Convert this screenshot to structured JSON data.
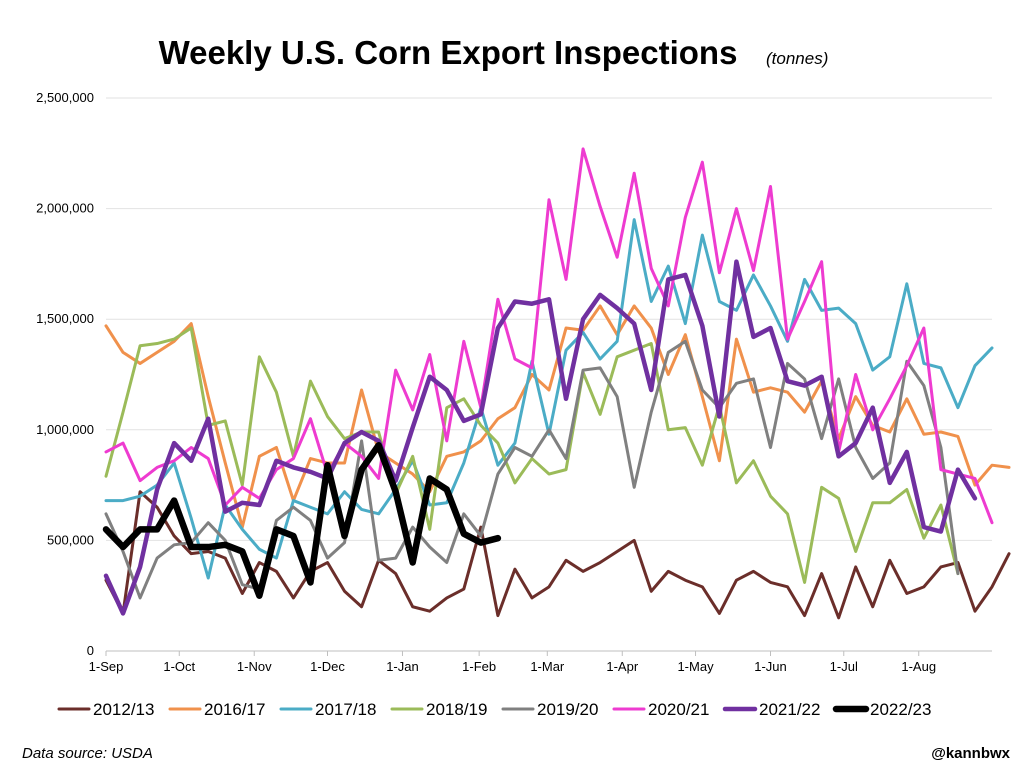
{
  "chart_data": {
    "type": "line",
    "title": "Weekly U.S. Corn Export Inspections",
    "subtitle": "(tonnes)",
    "ylim": [
      0,
      2500000
    ],
    "xlim": [
      0,
      52
    ],
    "y_ticks": [
      {
        "v": 0,
        "label": "0"
      },
      {
        "v": 500000,
        "label": "500,000"
      },
      {
        "v": 1000000,
        "label": "1,000,000"
      },
      {
        "v": 1500000,
        "label": "1,500,000"
      },
      {
        "v": 2000000,
        "label": "2,000,000"
      },
      {
        "v": 2500000,
        "label": "2,500,000"
      }
    ],
    "x_ticks": [
      {
        "v": 0,
        "label": "1-Sep"
      },
      {
        "v": 4.3,
        "label": "1-Oct"
      },
      {
        "v": 8.7,
        "label": "1-Nov"
      },
      {
        "v": 13.0,
        "label": "1-Dec"
      },
      {
        "v": 17.4,
        "label": "1-Jan"
      },
      {
        "v": 21.9,
        "label": "1-Feb"
      },
      {
        "v": 25.9,
        "label": "1-Mar"
      },
      {
        "v": 30.3,
        "label": "1-Apr"
      },
      {
        "v": 34.6,
        "label": "1-May"
      },
      {
        "v": 39.0,
        "label": "1-Jun"
      },
      {
        "v": 43.3,
        "label": "1-Jul"
      },
      {
        "v": 47.7,
        "label": "1-Aug"
      }
    ],
    "grid": true,
    "legend_position": "bottom",
    "series": [
      {
        "name": "2012/13",
        "color": "#6b2e2a",
        "width": 3,
        "values": [
          320000,
          170000,
          720000,
          650000,
          520000,
          440000,
          450000,
          420000,
          260000,
          400000,
          360000,
          240000,
          360000,
          400000,
          270000,
          200000,
          410000,
          350000,
          200000,
          180000,
          240000,
          280000,
          560000,
          160000,
          370000,
          240000,
          290000,
          410000,
          360000,
          400000,
          450000,
          500000,
          270000,
          360000,
          320000,
          290000,
          170000,
          320000,
          360000,
          310000,
          290000,
          160000,
          350000,
          150000,
          380000,
          200000,
          410000,
          260000,
          290000,
          380000,
          400000,
          180000,
          290000,
          440000
        ]
      },
      {
        "name": "2016/17",
        "color": "#f0914c",
        "width": 3,
        "values": [
          1470000,
          1350000,
          1300000,
          1350000,
          1400000,
          1480000,
          1150000,
          850000,
          560000,
          880000,
          920000,
          680000,
          870000,
          850000,
          850000,
          1180000,
          900000,
          850000,
          800000,
          720000,
          880000,
          900000,
          950000,
          1050000,
          1100000,
          1250000,
          1180000,
          1460000,
          1450000,
          1560000,
          1430000,
          1560000,
          1460000,
          1250000,
          1430000,
          1150000,
          860000,
          1410000,
          1170000,
          1190000,
          1170000,
          1080000,
          1220000,
          960000,
          1150000,
          1020000,
          990000,
          1140000,
          980000,
          990000,
          970000,
          750000,
          840000,
          830000
        ]
      },
      {
        "name": "2017/18",
        "color": "#4bacc6",
        "width": 3,
        "values": [
          680000,
          680000,
          700000,
          750000,
          850000,
          600000,
          330000,
          660000,
          550000,
          460000,
          420000,
          680000,
          650000,
          620000,
          720000,
          640000,
          620000,
          730000,
          860000,
          660000,
          670000,
          850000,
          1100000,
          840000,
          940000,
          1310000,
          980000,
          1360000,
          1440000,
          1320000,
          1400000,
          1950000,
          1580000,
          1740000,
          1480000,
          1880000,
          1580000,
          1540000,
          1700000,
          1560000,
          1400000,
          1680000,
          1540000,
          1550000,
          1480000,
          1270000,
          1330000,
          1660000,
          1300000,
          1280000,
          1100000,
          1290000,
          1370000
        ]
      },
      {
        "name": "2018/19",
        "color": "#9bbb59",
        "width": 3,
        "values": [
          790000,
          1080000,
          1380000,
          1390000,
          1410000,
          1460000,
          1020000,
          1040000,
          750000,
          1330000,
          1170000,
          880000,
          1220000,
          1060000,
          960000,
          990000,
          990000,
          710000,
          880000,
          550000,
          1100000,
          1140000,
          1020000,
          940000,
          760000,
          870000,
          800000,
          820000,
          1260000,
          1070000,
          1330000,
          1360000,
          1390000,
          1000000,
          1010000,
          840000,
          1110000,
          760000,
          860000,
          700000,
          620000,
          310000,
          740000,
          690000,
          450000,
          670000,
          670000,
          730000,
          510000,
          660000,
          350000
        ]
      },
      {
        "name": "2019/20",
        "color": "#808080",
        "width": 3,
        "values": [
          620000,
          450000,
          240000,
          420000,
          480000,
          490000,
          580000,
          500000,
          300000,
          280000,
          590000,
          650000,
          590000,
          420000,
          490000,
          950000,
          410000,
          420000,
          560000,
          470000,
          400000,
          620000,
          520000,
          800000,
          920000,
          880000,
          1000000,
          870000,
          1270000,
          1280000,
          1150000,
          740000,
          1080000,
          1350000,
          1400000,
          1180000,
          1100000,
          1210000,
          1230000,
          920000,
          1300000,
          1230000,
          960000,
          1230000,
          920000,
          780000,
          850000,
          1310000,
          1200000,
          920000,
          350000
        ]
      },
      {
        "name": "2020/21",
        "color": "#ee3bd0",
        "width": 3,
        "values": [
          900000,
          940000,
          770000,
          830000,
          860000,
          920000,
          870000,
          660000,
          740000,
          690000,
          820000,
          870000,
          1050000,
          800000,
          940000,
          880000,
          780000,
          1270000,
          1090000,
          1340000,
          950000,
          1400000,
          1100000,
          1590000,
          1320000,
          1280000,
          2040000,
          1680000,
          2270000,
          2010000,
          1780000,
          2160000,
          1730000,
          1560000,
          1960000,
          2210000,
          1710000,
          2000000,
          1720000,
          2100000,
          1410000,
          1580000,
          1760000,
          900000,
          1250000,
          1000000,
          1140000,
          1290000,
          1460000,
          820000,
          800000,
          780000,
          580000
        ]
      },
      {
        "name": "2021/22",
        "color": "#7030a0",
        "width": 4.5,
        "values": [
          340000,
          170000,
          380000,
          730000,
          940000,
          860000,
          1050000,
          630000,
          670000,
          660000,
          860000,
          830000,
          810000,
          780000,
          940000,
          990000,
          950000,
          770000,
          1010000,
          1240000,
          1180000,
          1040000,
          1070000,
          1460000,
          1580000,
          1570000,
          1590000,
          1140000,
          1500000,
          1610000,
          1550000,
          1480000,
          1180000,
          1680000,
          1700000,
          1470000,
          1060000,
          1760000,
          1420000,
          1460000,
          1220000,
          1200000,
          1240000,
          880000,
          940000,
          1100000,
          760000,
          900000,
          560000,
          540000,
          820000,
          690000
        ]
      },
      {
        "name": "2022/23",
        "color": "#000000",
        "width": 6.5,
        "values": [
          550000,
          470000,
          550000,
          550000,
          680000,
          470000,
          470000,
          480000,
          450000,
          250000,
          550000,
          520000,
          310000,
          840000,
          520000,
          820000,
          930000,
          720000,
          400000,
          780000,
          730000,
          530000,
          490000,
          510000
        ]
      }
    ]
  },
  "footer": {
    "source": "Data source: USDA",
    "handle": "@kannbwx"
  }
}
